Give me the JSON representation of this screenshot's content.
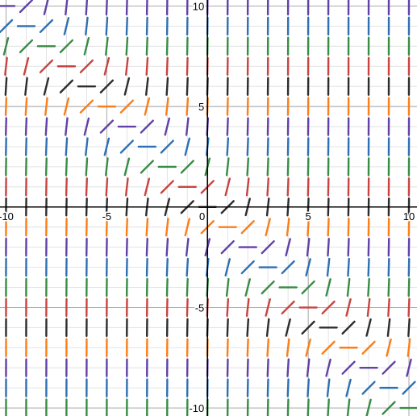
{
  "chart_data": {
    "type": "slope_field",
    "title": "",
    "xlabel": "",
    "ylabel": "",
    "xlim": [
      -10.3,
      10.4
    ],
    "ylim": [
      -10.4,
      10.3
    ],
    "x_ticks": [
      -10,
      -5,
      0,
      5,
      10
    ],
    "y_ticks": [
      -10,
      -5,
      5,
      10
    ],
    "x_tick_labels": [
      "-10",
      "-5",
      "0",
      "5",
      "10"
    ],
    "y_tick_labels": [
      "-10",
      "-5",
      "5",
      "10"
    ],
    "minor_grid_step": 1,
    "major_grid_step": 5,
    "grid": true,
    "differential_equation": "dy/dx = (x + y)^2",
    "sample_step": 1,
    "x_range": [
      -10,
      10
    ],
    "y_range": [
      -10,
      10
    ],
    "row_colors": [
      "#2d2d2d",
      "#c74440",
      "#388c46",
      "#2d70b3",
      "#6042a6",
      "#fa7e19"
    ],
    "colors": {
      "axis": "#000000",
      "major_grid": "#9e9e9e",
      "minor_grid": "#dcdcdc"
    }
  }
}
